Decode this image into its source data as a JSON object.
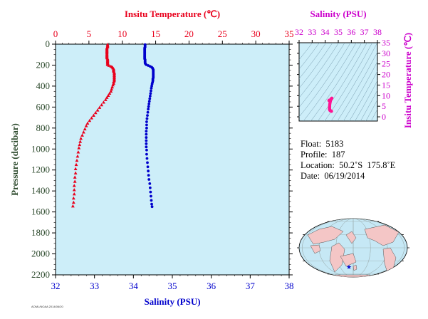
{
  "chart_data": [
    {
      "type": "scatter",
      "title": "",
      "top_axis": {
        "label": "Insitu Temperature (℃)",
        "range": [
          0,
          35
        ],
        "ticks": [
          "0",
          "5",
          "10",
          "15",
          "20",
          "25",
          "30",
          "35"
        ],
        "color": "#e8001c"
      },
      "bottom_axis": {
        "label": "Salinity (PSU)",
        "range": [
          32,
          38
        ],
        "ticks": [
          "32",
          "33",
          "34",
          "35",
          "36",
          "37",
          "38"
        ],
        "color": "#0000cc"
      },
      "y_axis": {
        "label": "Pressure (decibar)",
        "range": [
          0,
          2200
        ],
        "inverted": true,
        "ticks": [
          "0",
          "200",
          "400",
          "600",
          "800",
          "1000",
          "1200",
          "1400",
          "1600",
          "1800",
          "2000",
          "2200"
        ],
        "color": "#2d4a2d"
      },
      "background": "#cdeef9",
      "series": [
        {
          "variable": "temperature",
          "color": "#e8001c",
          "marker_shape": "triangle",
          "points": [
            [
              7.8,
              4
            ],
            [
              7.8,
              12
            ],
            [
              7.8,
              20
            ],
            [
              7.8,
              28
            ],
            [
              7.7,
              36
            ],
            [
              7.7,
              44
            ],
            [
              7.7,
              52
            ],
            [
              7.7,
              60
            ],
            [
              7.7,
              68
            ],
            [
              7.7,
              76
            ],
            [
              7.7,
              84
            ],
            [
              7.7,
              92
            ],
            [
              7.7,
              100
            ],
            [
              7.7,
              108
            ],
            [
              7.7,
              116
            ],
            [
              7.7,
              124
            ],
            [
              7.7,
              132
            ],
            [
              7.8,
              140
            ],
            [
              7.8,
              148
            ],
            [
              7.8,
              156
            ],
            [
              7.8,
              164
            ],
            [
              7.8,
              172
            ],
            [
              7.8,
              180
            ],
            [
              7.8,
              188
            ],
            [
              7.8,
              196
            ],
            [
              8.0,
              204
            ],
            [
              8.3,
              212
            ],
            [
              8.5,
              220
            ],
            [
              8.6,
              228
            ],
            [
              8.7,
              236
            ],
            [
              8.7,
              244
            ],
            [
              8.7,
              252
            ],
            [
              8.7,
              260
            ],
            [
              8.8,
              270
            ],
            [
              8.8,
              280
            ],
            [
              8.8,
              290
            ],
            [
              8.8,
              300
            ],
            [
              8.8,
              310
            ],
            [
              8.8,
              320
            ],
            [
              8.8,
              330
            ],
            [
              8.8,
              340
            ],
            [
              8.8,
              350
            ],
            [
              8.7,
              360
            ],
            [
              8.7,
              375
            ],
            [
              8.6,
              390
            ],
            [
              8.5,
              410
            ],
            [
              8.4,
              430
            ],
            [
              8.3,
              450
            ],
            [
              8.1,
              470
            ],
            [
              7.9,
              490
            ],
            [
              7.7,
              510
            ],
            [
              7.5,
              530
            ],
            [
              7.2,
              555
            ],
            [
              6.9,
              580
            ],
            [
              6.6,
              605
            ],
            [
              6.3,
              630
            ],
            [
              6.0,
              655
            ],
            [
              5.7,
              680
            ],
            [
              5.4,
              705
            ],
            [
              5.1,
              730
            ],
            [
              4.8,
              755
            ],
            [
              4.6,
              780
            ],
            [
              4.4,
              810
            ],
            [
              4.2,
              840
            ],
            [
              4.0,
              870
            ],
            [
              3.8,
              900
            ],
            [
              3.7,
              930
            ],
            [
              3.6,
              960
            ],
            [
              3.5,
              990
            ],
            [
              3.4,
              1030
            ],
            [
              3.3,
              1070
            ],
            [
              3.2,
              1110
            ],
            [
              3.1,
              1150
            ],
            [
              3.0,
              1190
            ],
            [
              3.0,
              1230
            ],
            [
              2.9,
              1270
            ],
            [
              2.9,
              1310
            ],
            [
              2.8,
              1350
            ],
            [
              2.8,
              1390
            ],
            [
              2.8,
              1430
            ],
            [
              2.7,
              1470
            ],
            [
              2.7,
              1510
            ],
            [
              2.6,
              1545
            ]
          ]
        },
        {
          "variable": "salinity",
          "color": "#0000cc",
          "marker_shape": "circle",
          "points": [
            [
              34.3,
              4
            ],
            [
              34.3,
              12
            ],
            [
              34.3,
              20
            ],
            [
              34.3,
              28
            ],
            [
              34.29,
              36
            ],
            [
              34.29,
              44
            ],
            [
              34.29,
              52
            ],
            [
              34.29,
              60
            ],
            [
              34.29,
              68
            ],
            [
              34.29,
              76
            ],
            [
              34.29,
              84
            ],
            [
              34.29,
              92
            ],
            [
              34.29,
              100
            ],
            [
              34.29,
              108
            ],
            [
              34.29,
              116
            ],
            [
              34.29,
              124
            ],
            [
              34.29,
              132
            ],
            [
              34.29,
              140
            ],
            [
              34.3,
              148
            ],
            [
              34.3,
              156
            ],
            [
              34.3,
              164
            ],
            [
              34.3,
              172
            ],
            [
              34.3,
              180
            ],
            [
              34.31,
              188
            ],
            [
              34.33,
              196
            ],
            [
              34.38,
              204
            ],
            [
              34.43,
              212
            ],
            [
              34.47,
              220
            ],
            [
              34.49,
              228
            ],
            [
              34.5,
              236
            ],
            [
              34.51,
              244
            ],
            [
              34.51,
              252
            ],
            [
              34.51,
              260
            ],
            [
              34.51,
              270
            ],
            [
              34.51,
              280
            ],
            [
              34.51,
              290
            ],
            [
              34.51,
              300
            ],
            [
              34.51,
              310
            ],
            [
              34.51,
              320
            ],
            [
              34.5,
              330
            ],
            [
              34.5,
              340
            ],
            [
              34.5,
              350
            ],
            [
              34.49,
              365
            ],
            [
              34.48,
              380
            ],
            [
              34.47,
              400
            ],
            [
              34.46,
              420
            ],
            [
              34.45,
              445
            ],
            [
              34.44,
              470
            ],
            [
              34.43,
              495
            ],
            [
              34.42,
              520
            ],
            [
              34.41,
              545
            ],
            [
              34.4,
              570
            ],
            [
              34.39,
              595
            ],
            [
              34.38,
              620
            ],
            [
              34.37,
              650
            ],
            [
              34.36,
              680
            ],
            [
              34.35,
              710
            ],
            [
              34.34,
              740
            ],
            [
              34.34,
              770
            ],
            [
              34.34,
              800
            ],
            [
              34.33,
              830
            ],
            [
              34.33,
              860
            ],
            [
              34.33,
              890
            ],
            [
              34.33,
              920
            ],
            [
              34.33,
              950
            ],
            [
              34.33,
              980
            ],
            [
              34.34,
              1010
            ],
            [
              34.34,
              1050
            ],
            [
              34.35,
              1090
            ],
            [
              34.36,
              1130
            ],
            [
              34.37,
              1170
            ],
            [
              34.38,
              1210
            ],
            [
              34.39,
              1250
            ],
            [
              34.4,
              1290
            ],
            [
              34.42,
              1330
            ],
            [
              34.43,
              1370
            ],
            [
              34.44,
              1410
            ],
            [
              34.45,
              1450
            ],
            [
              34.46,
              1490
            ],
            [
              34.47,
              1525
            ],
            [
              34.48,
              1550
            ]
          ]
        }
      ]
    },
    {
      "type": "scatter",
      "title": "",
      "top_axis": {
        "label": "Salinity (PSU)",
        "range": [
          32,
          38
        ],
        "ticks": [
          "32",
          "33",
          "34",
          "35",
          "36",
          "37",
          "38"
        ],
        "color": "#cc00cc"
      },
      "right_axis": {
        "label": "Insitu Temperature (℃)",
        "range": [
          -2,
          35
        ],
        "ticks": [
          "0",
          "5",
          "10",
          "15",
          "20",
          "25",
          "30",
          "35"
        ],
        "color": "#cc00cc"
      },
      "background": "#cdeef9",
      "series": [
        {
          "color": "#ff1493",
          "points": [
            [
              34.3,
              7.8
            ],
            [
              34.3,
              7.7
            ],
            [
              34.29,
              7.7
            ],
            [
              34.33,
              7.8
            ],
            [
              34.43,
              8.3
            ],
            [
              34.5,
              8.7
            ],
            [
              34.51,
              8.8
            ],
            [
              34.5,
              8.8
            ],
            [
              34.48,
              8.6
            ],
            [
              34.45,
              8.4
            ],
            [
              34.43,
              8.1
            ],
            [
              34.41,
              7.7
            ],
            [
              34.39,
              7.2
            ],
            [
              34.37,
              6.6
            ],
            [
              34.35,
              6.0
            ],
            [
              34.34,
              5.4
            ],
            [
              34.34,
              4.8
            ],
            [
              34.33,
              4.4
            ],
            [
              34.33,
              4.0
            ],
            [
              34.33,
              3.7
            ],
            [
              34.34,
              3.5
            ],
            [
              34.35,
              3.2
            ],
            [
              34.37,
              3.0
            ],
            [
              34.39,
              2.9
            ],
            [
              34.42,
              2.8
            ],
            [
              34.44,
              2.8
            ],
            [
              34.46,
              2.7
            ],
            [
              34.48,
              2.6
            ]
          ]
        }
      ]
    }
  ],
  "info": {
    "float": "Float:  5183",
    "profile": "Profile:  187",
    "location": "Location:  50.2˚S  175.8˚E",
    "date": "Date:  06/19/2014"
  },
  "map": {
    "ocean_color": "#c6e8f5",
    "land_color": "#f4c6c6",
    "marker_color": "#0000cc"
  },
  "stamp": "AOML/NOAA 2014/06/20"
}
